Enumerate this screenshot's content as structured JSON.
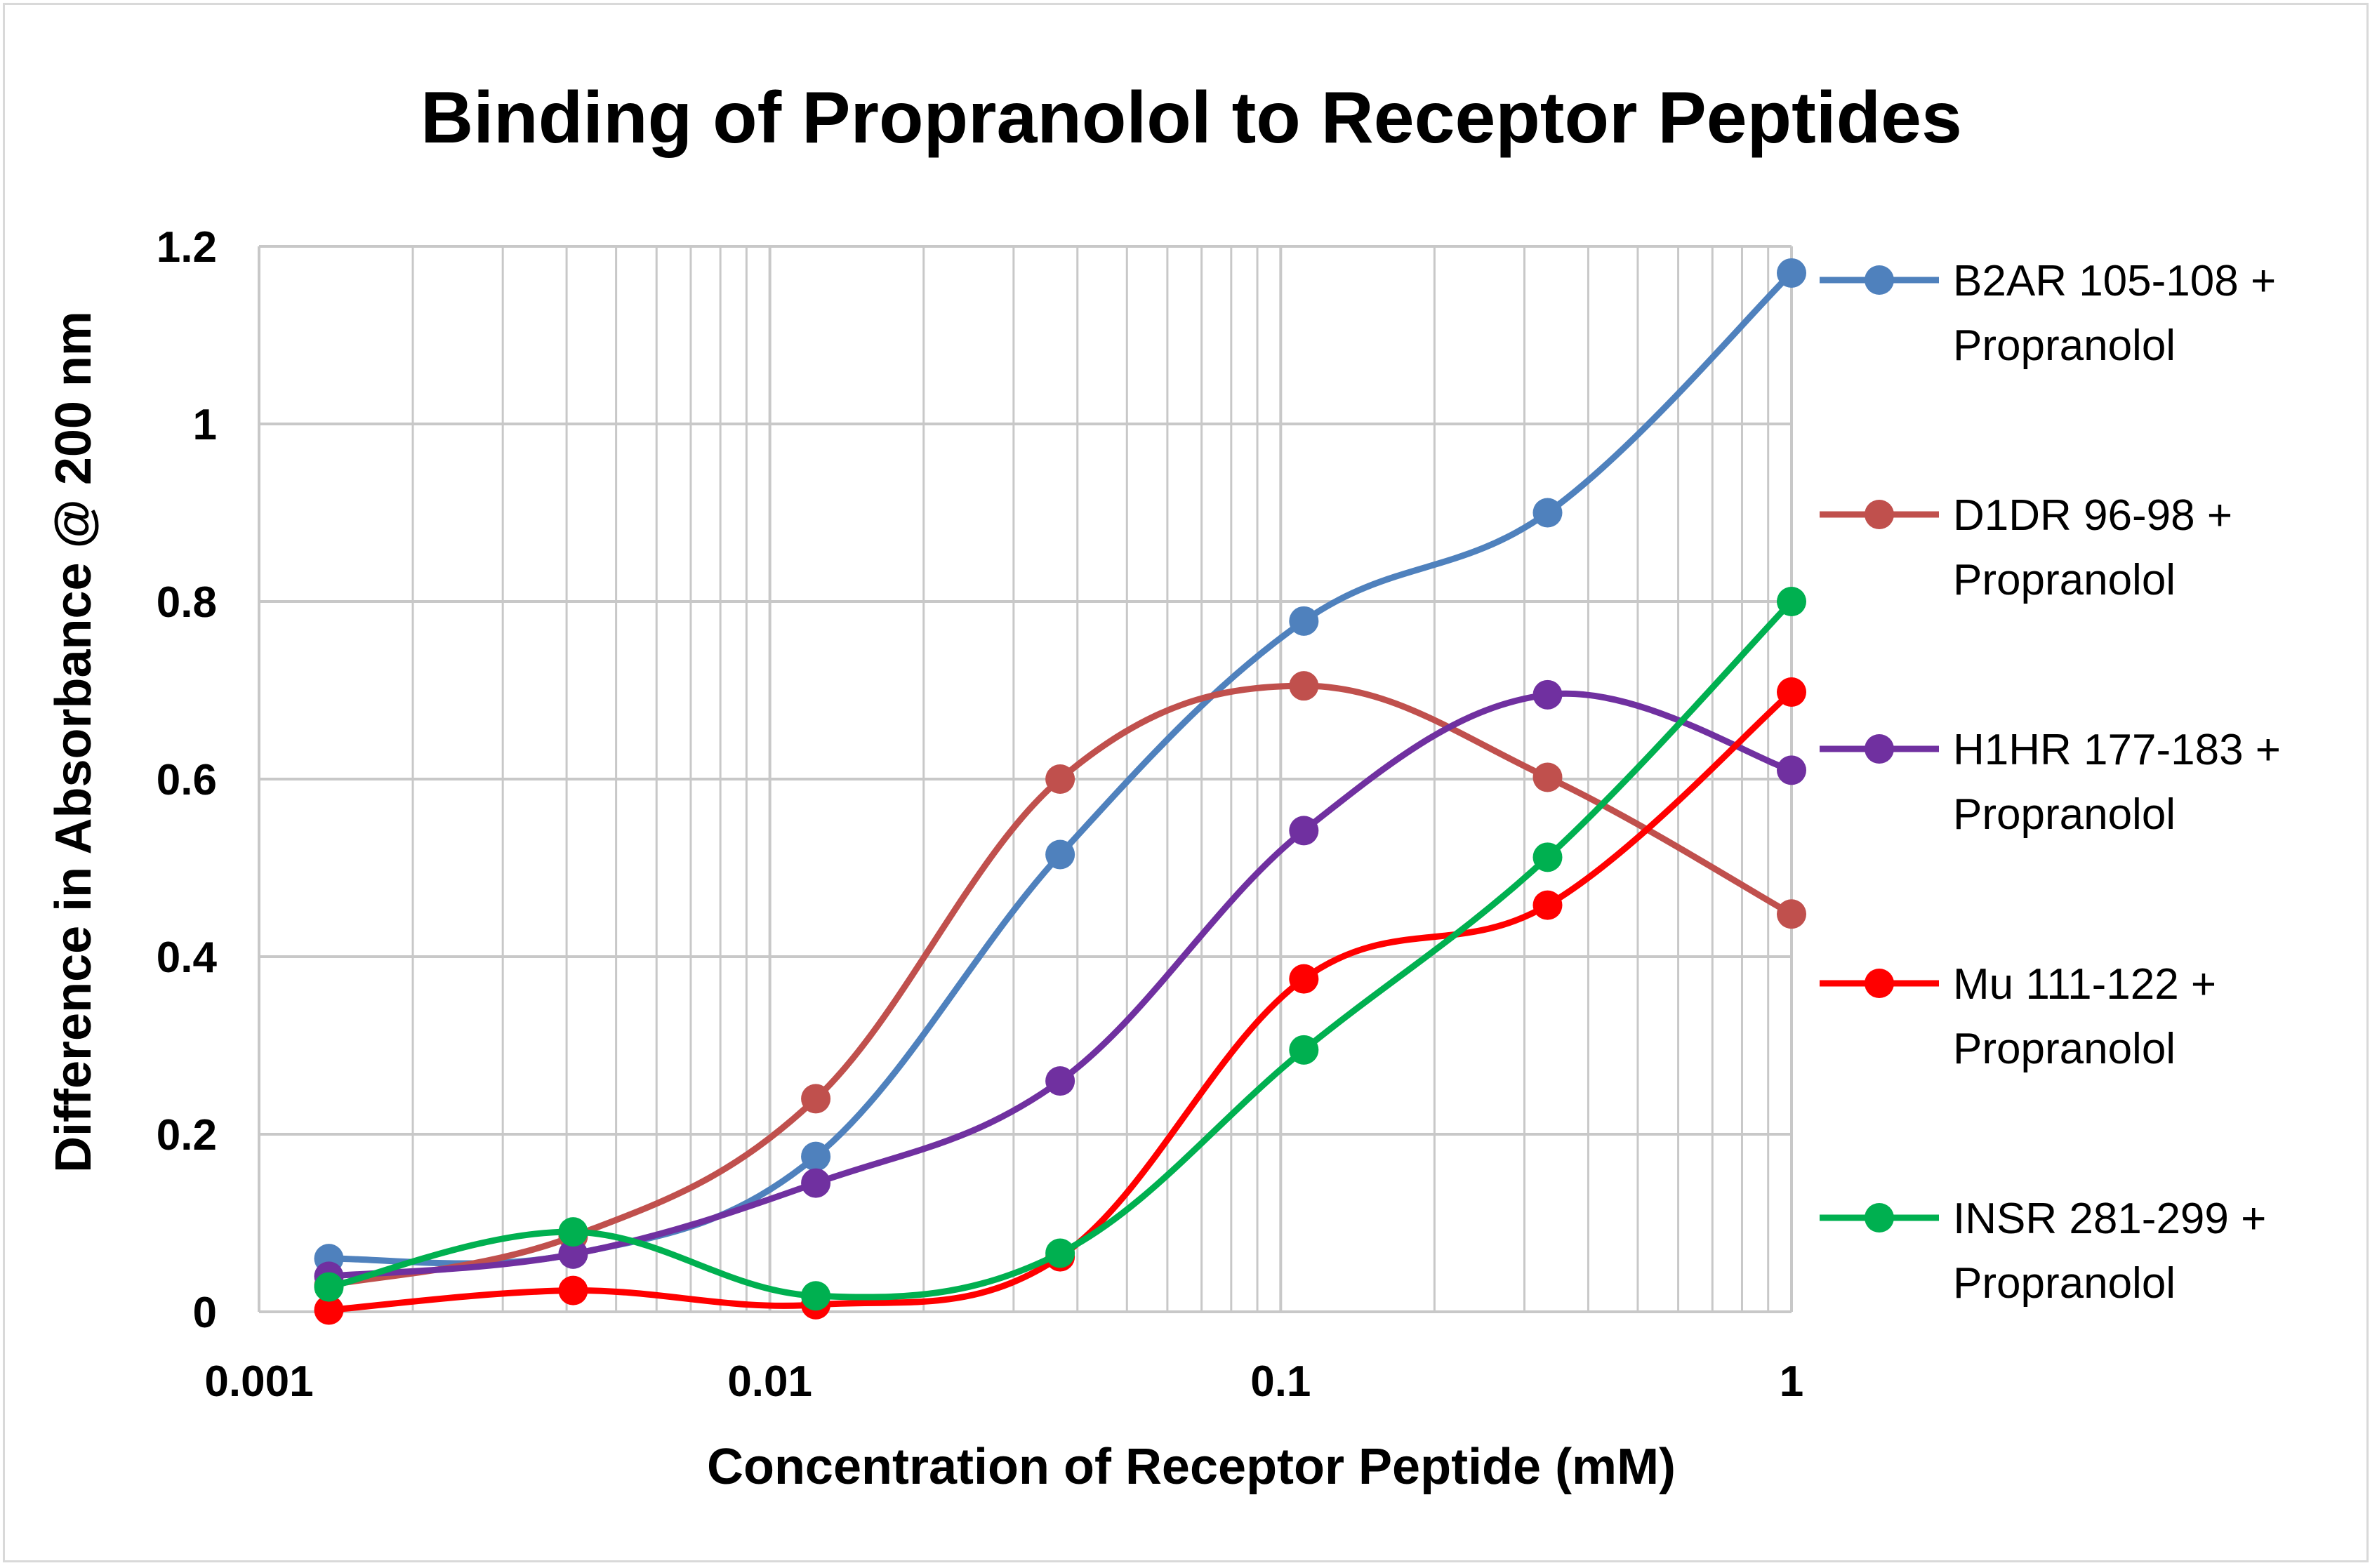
{
  "chart_data": {
    "type": "line",
    "title": "Binding of Propranolol to Receptor Peptides",
    "xlabel": "Concentration of Receptor Peptide (mM)",
    "ylabel": "Difference in Absorbance @ 200 nm",
    "xscale": "log",
    "xlim": [
      0.001,
      1
    ],
    "ylim": [
      0,
      1.2
    ],
    "xticks": [
      0.001,
      0.01,
      0.1,
      1
    ],
    "xtick_labels": [
      "0.001",
      "0.01",
      "0.1",
      "1"
    ],
    "yticks": [
      0,
      0.2,
      0.4,
      0.6,
      0.8,
      1,
      1.2
    ],
    "ytick_labels": [
      "0",
      "0.2",
      "0.4",
      "0.6",
      "0.8",
      "1",
      "1.2"
    ],
    "grid": true,
    "legend_position": "right",
    "x": [
      0.00137,
      0.00412,
      0.0123,
      0.037,
      0.111,
      0.333,
      1.0
    ],
    "series": [
      {
        "name": "B2AR 105-108 + Propranolol",
        "label_lines": [
          "B2AR 105-108 +",
          "Propranolol"
        ],
        "color": "#4f81bd",
        "values": [
          0.06,
          0.065,
          0.175,
          0.515,
          0.778,
          0.9,
          1.17
        ]
      },
      {
        "name": "D1DR 96-98 + Propranolol",
        "label_lines": [
          "D1DR 96-98 +",
          "Propranolol"
        ],
        "color": "#c0504d",
        "values": [
          0.03,
          0.085,
          0.24,
          0.6,
          0.705,
          0.602,
          0.448
        ]
      },
      {
        "name": "H1HR 177-183 + Propranolol",
        "label_lines": [
          "H1HR 177-183 +",
          "Propranolol"
        ],
        "color": "#7030a0",
        "values": [
          0.04,
          0.065,
          0.145,
          0.26,
          0.542,
          0.695,
          0.61
        ]
      },
      {
        "name": "Mu 111-122 + Propranolol",
        "label_lines": [
          "Mu 111-122 +",
          "Propranolol"
        ],
        "color": "#ff0000",
        "values": [
          0.002,
          0.024,
          0.008,
          0.062,
          0.375,
          0.458,
          0.698
        ]
      },
      {
        "name": "INSR 281-299 + Propranolol",
        "label_lines": [
          "INSR 281-299 +",
          "Propranolol"
        ],
        "color": "#00b050",
        "values": [
          0.028,
          0.09,
          0.018,
          0.066,
          0.295,
          0.512,
          0.8
        ]
      }
    ]
  }
}
